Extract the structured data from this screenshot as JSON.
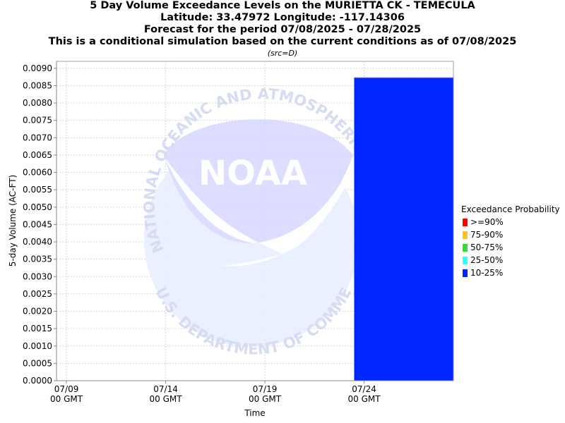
{
  "header": {
    "title_lines": [
      "5 Day Volume Exceedance Levels on the MURIETTA CK - TEMECULA",
      "Latitude: 33.47972 Longitude: -117.14306",
      "Forecast for the period 07/08/2025 - 07/28/2025",
      "This is a conditional simulation based on the current conditions as of 07/08/2025"
    ],
    "source_note": "(src=D)"
  },
  "watermark": {
    "logo_text": "NOAA",
    "top_arc_text": "NATIONAL OCEANIC AND ATMOSPHERIC ADMINISTRATION",
    "bottom_arc_text": "U.S. DEPARTMENT OF COMMERCE"
  },
  "chart_data": {
    "type": "bar",
    "xlabel": "Time",
    "ylabel": "5-day Volume (AC-FT)",
    "ylim": [
      0,
      0.0092
    ],
    "y_ticks": [
      "0.0000",
      "0.0005",
      "0.0010",
      "0.0015",
      "0.0020",
      "0.0025",
      "0.0030",
      "0.0035",
      "0.0040",
      "0.0045",
      "0.0050",
      "0.0055",
      "0.0060",
      "0.0065",
      "0.0070",
      "0.0075",
      "0.0080",
      "0.0085",
      "0.0090"
    ],
    "x_range": [
      "07/08 12 GMT",
      "07/28 12 GMT"
    ],
    "x_ticks": [
      {
        "date": "07/09",
        "time": "00 GMT"
      },
      {
        "date": "07/14",
        "time": "00 GMT"
      },
      {
        "date": "07/19",
        "time": "00 GMT"
      },
      {
        "date": "07/24",
        "time": "00 GMT"
      }
    ],
    "bars": [
      {
        "start": "07/23 12 GMT",
        "end": "07/28 12 GMT",
        "value": 0.00873,
        "probability": "10-25%"
      }
    ],
    "grid": true,
    "legend_placement": "right",
    "legend_title": "Exceedance Probability",
    "legend": [
      {
        "label": ">=90%",
        "color": "#ff0000"
      },
      {
        "label": "75-90%",
        "color": "#ffc020"
      },
      {
        "label": "50-75%",
        "color": "#33dd33"
      },
      {
        "label": "25-50%",
        "color": "#33ffff"
      },
      {
        "label": "10-25%",
        "color": "#0026ff"
      }
    ]
  }
}
